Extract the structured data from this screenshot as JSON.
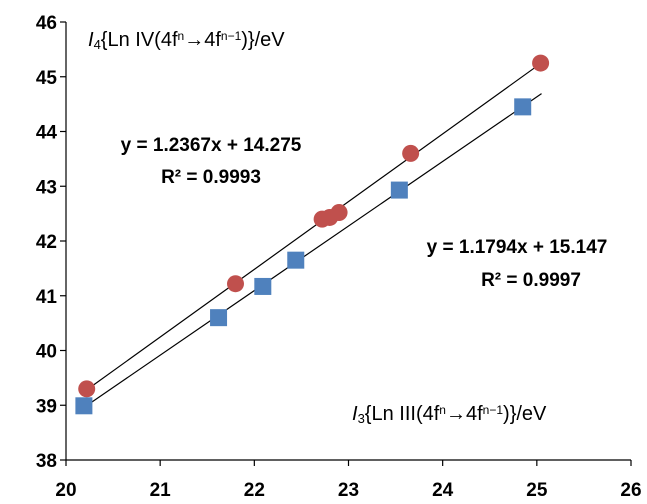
{
  "chart_data": {
    "type": "scatter",
    "xlim": [
      20,
      26
    ],
    "ylim": [
      38,
      46
    ],
    "x_ticks": [
      20,
      21,
      22,
      23,
      24,
      25,
      26
    ],
    "y_ticks": [
      38,
      39,
      40,
      41,
      42,
      43,
      44,
      45,
      46
    ],
    "grid": false,
    "y_axis_label": {
      "sym": "I",
      "sub": "4",
      "pre": "{Ln IV(4f",
      "sup1": "n",
      "mid": "→4f",
      "sup2": "n−1",
      "post": ")}/eV"
    },
    "x_axis_label": {
      "sym": "I",
      "sub": "3",
      "pre": "{Ln III(4f",
      "sup1": "n",
      "mid": "→4f",
      "sup2": "n−1",
      "post": ")}/eV"
    },
    "series": [
      {
        "marker": "circle",
        "color": "#c0504d",
        "points": [
          [
            20.22,
            39.3
          ],
          [
            21.8,
            41.22
          ],
          [
            22.72,
            42.4
          ],
          [
            22.8,
            42.43
          ],
          [
            22.9,
            42.52
          ],
          [
            23.66,
            43.6
          ],
          [
            25.04,
            45.25
          ]
        ],
        "trendline": {
          "slope": 1.2367,
          "intercept": 14.275,
          "x_range": [
            20.2,
            25.05
          ]
        },
        "equation": "y = 1.2367x + 14.275",
        "r2": "R² = 0.9993"
      },
      {
        "marker": "square",
        "color": "#4f81bd",
        "points": [
          [
            20.19,
            38.99
          ],
          [
            21.62,
            40.6
          ],
          [
            22.09,
            41.17
          ],
          [
            22.44,
            41.65
          ],
          [
            23.54,
            42.93
          ],
          [
            24.85,
            44.45
          ]
        ],
        "trendline": {
          "slope": 1.1794,
          "intercept": 15.147,
          "x_range": [
            20.2,
            25.05
          ]
        },
        "equation": "y = 1.1794x + 15.147",
        "r2": "R² = 0.9997"
      }
    ]
  }
}
